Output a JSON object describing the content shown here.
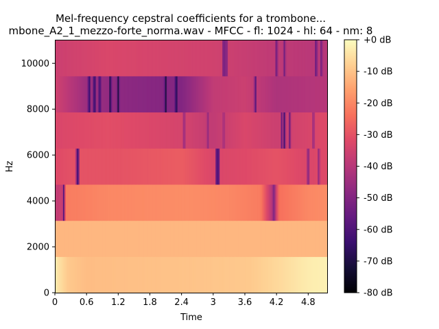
{
  "chart_data": {
    "type": "heatmap",
    "title_line1": "Mel-frequency cepstral coefficients for a trombone...",
    "title_line2": "mbone_A2_1_mezzo-forte_norma.wav - MFCC - fl: 1024 - hl: 64 - nm: 8",
    "xlabel": "Time",
    "ylabel": "Hz",
    "xlim": [
      0,
      5.16
    ],
    "ylim": [
      0,
      11025
    ],
    "x_ticks": [
      0,
      0.6,
      1.2,
      1.8,
      2.4,
      3,
      3.6,
      4.2,
      4.8
    ],
    "x_tick_labels": [
      "0",
      "0.6",
      "1.2",
      "1.8",
      "2.4",
      "3",
      "3.6",
      "4.2",
      "4.8"
    ],
    "y_ticks": [
      0,
      2000,
      4000,
      6000,
      8000,
      10000
    ],
    "y_tick_labels": [
      "0",
      "2000",
      "4000",
      "6000",
      "8000",
      "10000"
    ],
    "colormap": "magma",
    "colorbar": {
      "range": [
        -80,
        0
      ],
      "ticks": [
        0,
        -10,
        -20,
        -30,
        -40,
        -50,
        -60,
        -70,
        -80
      ],
      "tick_labels": [
        "+0 dB",
        "-10 dB",
        "-20 dB",
        "-30 dB",
        "-40 dB",
        "-50 dB",
        "-60 dB",
        "-70 dB",
        "-80 dB"
      ]
    },
    "bands": [
      {
        "coef": 0,
        "base_db": -10,
        "profile": [
          [
            0,
            -3
          ],
          [
            0.25,
            -9
          ],
          [
            0.6,
            -11
          ],
          [
            2.5,
            -10
          ],
          [
            3.7,
            -9
          ],
          [
            4.3,
            -6
          ],
          [
            4.8,
            -3
          ],
          [
            5.16,
            -2
          ]
        ],
        "dips": []
      },
      {
        "coef": 1,
        "base_db": -12,
        "profile": [
          [
            0,
            -12
          ],
          [
            5.16,
            -12
          ]
        ],
        "dips": []
      },
      {
        "coef": 2,
        "base_db": -20,
        "profile": [
          [
            0,
            -38
          ],
          [
            0.15,
            -36
          ],
          [
            0.2,
            -22
          ],
          [
            1.0,
            -20
          ],
          [
            2.5,
            -19
          ],
          [
            3.3,
            -20
          ],
          [
            3.9,
            -22
          ],
          [
            4.15,
            -44
          ],
          [
            4.25,
            -24
          ],
          [
            4.8,
            -20
          ],
          [
            5.16,
            -19
          ]
        ],
        "dips": [
          [
            0.17,
            -60
          ],
          [
            4.15,
            -52
          ]
        ]
      },
      {
        "coef": 3,
        "base_db": -30,
        "profile": [
          [
            0,
            -32
          ],
          [
            0.4,
            -30
          ],
          [
            1.2,
            -30
          ],
          [
            2.4,
            -28
          ],
          [
            3.0,
            -33
          ],
          [
            3.6,
            -32
          ],
          [
            4.2,
            -30
          ],
          [
            4.8,
            -33
          ],
          [
            5.16,
            -32
          ]
        ],
        "dips": [
          [
            0.42,
            -62
          ],
          [
            0.44,
            -66
          ],
          [
            3.07,
            -72
          ],
          [
            3.1,
            -66
          ],
          [
            4.8,
            -55
          ],
          [
            5.0,
            -50
          ]
        ]
      },
      {
        "coef": 4,
        "base_db": -33,
        "profile": [
          [
            0,
            -33
          ],
          [
            1.0,
            -31
          ],
          [
            2.4,
            -34
          ],
          [
            3.0,
            -38
          ],
          [
            3.6,
            -33
          ],
          [
            4.2,
            -36
          ],
          [
            5.16,
            -32
          ]
        ],
        "dips": [
          [
            2.45,
            -50
          ],
          [
            2.9,
            -48
          ],
          [
            3.2,
            -46
          ],
          [
            4.3,
            -58
          ],
          [
            4.35,
            -65
          ],
          [
            4.45,
            -55
          ],
          [
            4.9,
            -50
          ]
        ]
      },
      {
        "coef": 5,
        "base_db": -38,
        "profile": [
          [
            0,
            -35
          ],
          [
            0.6,
            -45
          ],
          [
            1.3,
            -48
          ],
          [
            2.4,
            -50
          ],
          [
            3.0,
            -38
          ],
          [
            3.6,
            -36
          ],
          [
            4.2,
            -42
          ],
          [
            5.16,
            -40
          ]
        ],
        "dips": [
          [
            0.65,
            -70
          ],
          [
            0.75,
            -72
          ],
          [
            0.85,
            -68
          ],
          [
            1.05,
            -72
          ],
          [
            1.2,
            -70
          ],
          [
            2.1,
            -72
          ],
          [
            2.3,
            -74
          ],
          [
            3.8,
            -62
          ]
        ]
      },
      {
        "coef": 6,
        "base_db": -35,
        "profile": [
          [
            0,
            -36
          ],
          [
            1.0,
            -33
          ],
          [
            2.0,
            -34
          ],
          [
            3.0,
            -35
          ],
          [
            4.0,
            -38
          ],
          [
            5.16,
            -40
          ]
        ],
        "dips": [
          [
            3.2,
            -62
          ],
          [
            3.25,
            -58
          ],
          [
            4.2,
            -58
          ],
          [
            4.35,
            -55
          ],
          [
            4.95,
            -60
          ],
          [
            5.05,
            -55
          ]
        ]
      }
    ]
  }
}
